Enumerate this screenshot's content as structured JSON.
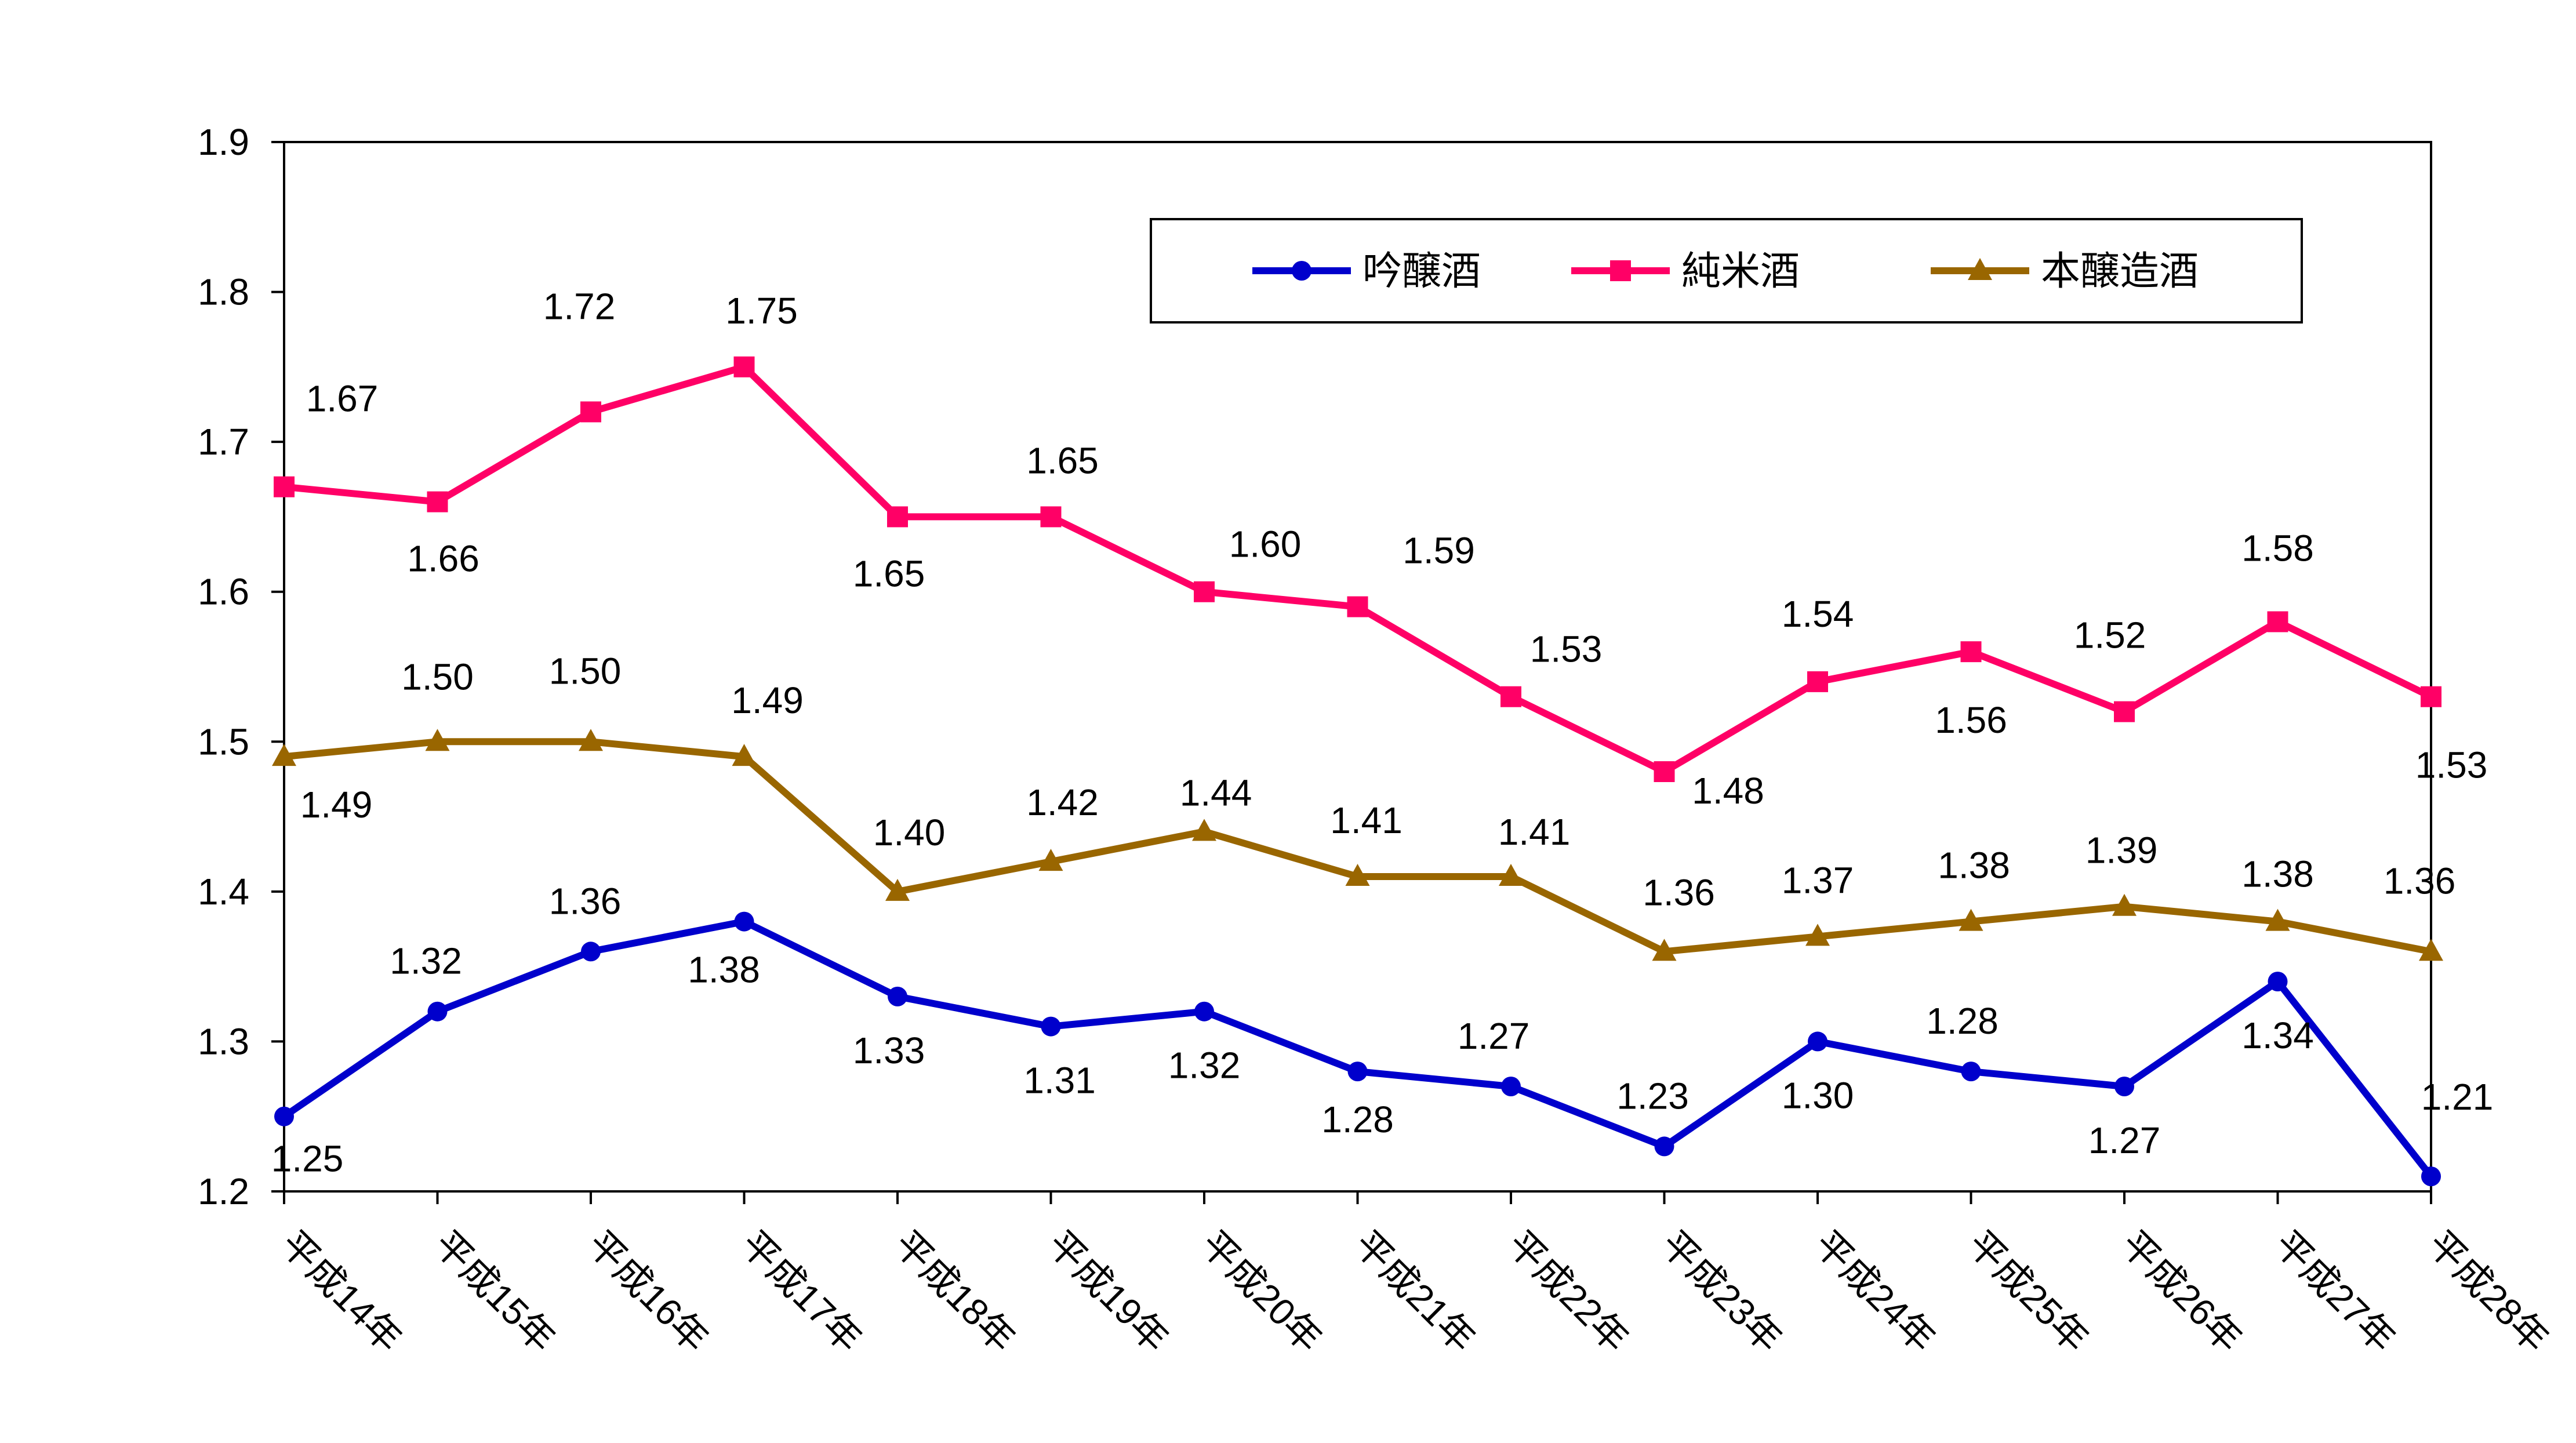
{
  "chart_data": {
    "type": "line",
    "title": "",
    "xlabel": "",
    "ylabel": "",
    "ylim": [
      1.2,
      1.9
    ],
    "yticks": [
      "1.2",
      "1.3",
      "1.4",
      "1.5",
      "1.6",
      "1.7",
      "1.8",
      "1.9"
    ],
    "grid": false,
    "legend_position": "top-right",
    "categories": [
      "平成14年",
      "平成15年",
      "平成16年",
      "平成17年",
      "平成18年",
      "平成19年",
      "平成20年",
      "平成21年",
      "平成22年",
      "平成23年",
      "平成24年",
      "平成25年",
      "平成26年",
      "平成27年",
      "平成28年"
    ],
    "series": [
      {
        "name": "吟醸酒",
        "color": "#0000cc",
        "marker": "circle",
        "values": [
          1.25,
          1.32,
          1.36,
          1.38,
          1.33,
          1.31,
          1.32,
          1.28,
          1.27,
          1.23,
          1.3,
          1.28,
          1.27,
          1.34,
          1.21
        ],
        "labels": [
          "1.25",
          "1.32",
          "1.36",
          "1.38",
          "1.33",
          "1.31",
          "1.32",
          "1.28",
          "1.27",
          "1.23",
          "1.30",
          "1.28",
          "1.27",
          "1.34",
          "1.21"
        ]
      },
      {
        "name": "純米酒",
        "color": "#ff0066",
        "marker": "square",
        "values": [
          1.67,
          1.66,
          1.72,
          1.75,
          1.65,
          1.65,
          1.6,
          1.59,
          1.53,
          1.48,
          1.54,
          1.56,
          1.52,
          1.58,
          1.53
        ],
        "labels": [
          "1.67",
          "1.66",
          "1.72",
          "1.75",
          "1.65",
          "1.65",
          "1.60",
          "1.59",
          "1.53",
          "1.48",
          "1.54",
          "1.56",
          "1.52",
          "1.58",
          "1.53"
        ]
      },
      {
        "name": "本醸造酒",
        "color": "#996600",
        "marker": "triangle",
        "values": [
          1.49,
          1.5,
          1.5,
          1.49,
          1.4,
          1.42,
          1.44,
          1.41,
          1.41,
          1.36,
          1.37,
          1.38,
          1.39,
          1.38,
          1.36
        ],
        "labels": [
          "1.49",
          "1.50",
          "1.50",
          "1.49",
          "1.40",
          "1.42",
          "1.44",
          "1.41",
          "1.41",
          "1.36",
          "1.37",
          "1.38",
          "1.39",
          "1.38",
          "1.36"
        ]
      }
    ]
  }
}
